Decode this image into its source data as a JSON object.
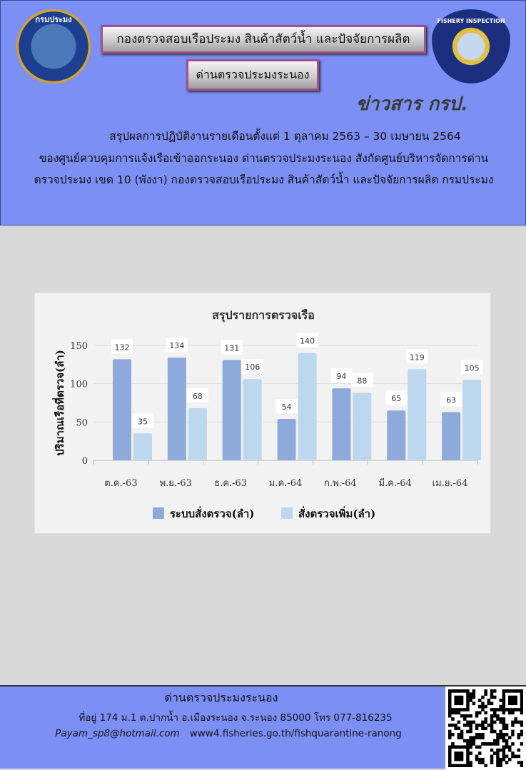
{
  "header": {
    "logo_left_text": "กรมประมง",
    "logo_right_text": "FISHERY INSPECTION",
    "title1": "กองตรวจสอบเรือประมง  สินค้าสัตว์น้ำ  และปัจจัยการผลิต",
    "title2": "ด่านตรวจประมงระนอง",
    "news_label": "ข่าวสาร กรป.",
    "desc1": "สรุปผลการปฏิบัติงานรายเดือนตั้งแต่ 1 ตุลาคม 2563 – 30 เมษายน 2564",
    "desc2": "ของศูนย์ควบคุมการแจ้งเรือเข้าออกระนอง ด่านตรวจประมงระนอง สังกัดศูนย์บริหารจัดการด่าน",
    "desc3": "ตรวจประมง เขต 10 (พังงา) กองตรวจสอบเรือประมง สินค้าสัตว์น้ำ และปัจจัยการผลิต กรมประมง"
  },
  "chart_data": {
    "type": "bar",
    "title": "สรุปรายการตรวจเรือ",
    "xlabel": "",
    "ylabel": "ปริมาณเรือที่ตรวจ(ลำ)",
    "ylim": [
      0,
      150
    ],
    "yticks": [
      0,
      50,
      100,
      150
    ],
    "grid": true,
    "legend": "bottom",
    "categories": [
      "ต.ค.-63",
      "พ.ย.-63",
      "ธ.ค.-63",
      "ม.ค.-64",
      "ก.พ.-64",
      "มี.ค.-64",
      "เม.ย.-64"
    ],
    "series": [
      {
        "name": "ระบบสั่งตรวจ(ลำ)",
        "color": "#8eaadb",
        "values": [
          132,
          134,
          131,
          54,
          94,
          65,
          63
        ]
      },
      {
        "name": "สั่งตรวจเพิ่ม(ลำ)",
        "color": "#bdd7ee",
        "values": [
          35,
          68,
          106,
          140,
          88,
          119,
          105
        ]
      }
    ]
  },
  "footer": {
    "office": "ด่านตรวจประมงระนอง",
    "address": "ที่อยู่ 174 ม.1 ต.ปากน้ำ อ.เมืองระนอง จ.ระนอง 85000 โทร 077-816235",
    "email": "Payam_sp8@hotmail.com",
    "website": "www4.fisheries.go.th/fishquarantine-ranong"
  }
}
